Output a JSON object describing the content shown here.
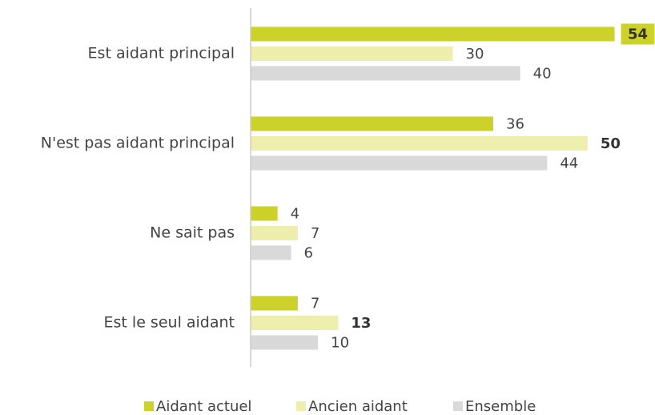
{
  "chart_data": {
    "type": "hbar",
    "categories": [
      "Est aidant principal",
      "N'est pas aidant principal",
      "Ne sait pas",
      "Est le seul aidant"
    ],
    "series": [
      {
        "name": "Aidant actuel",
        "color": "#cdd22b",
        "values": [
          54,
          36,
          4,
          7
        ],
        "bold": [
          true,
          false,
          false,
          false
        ]
      },
      {
        "name": "Ancien aidant",
        "color": "#eeefac",
        "values": [
          30,
          50,
          7,
          13
        ],
        "bold": [
          false,
          true,
          false,
          true
        ]
      },
      {
        "name": "Ensemble",
        "color": "#d9d9d9",
        "values": [
          40,
          44,
          6,
          10
        ],
        "bold": [
          false,
          false,
          false,
          false
        ]
      }
    ],
    "xlim": [
      0,
      60
    ]
  }
}
